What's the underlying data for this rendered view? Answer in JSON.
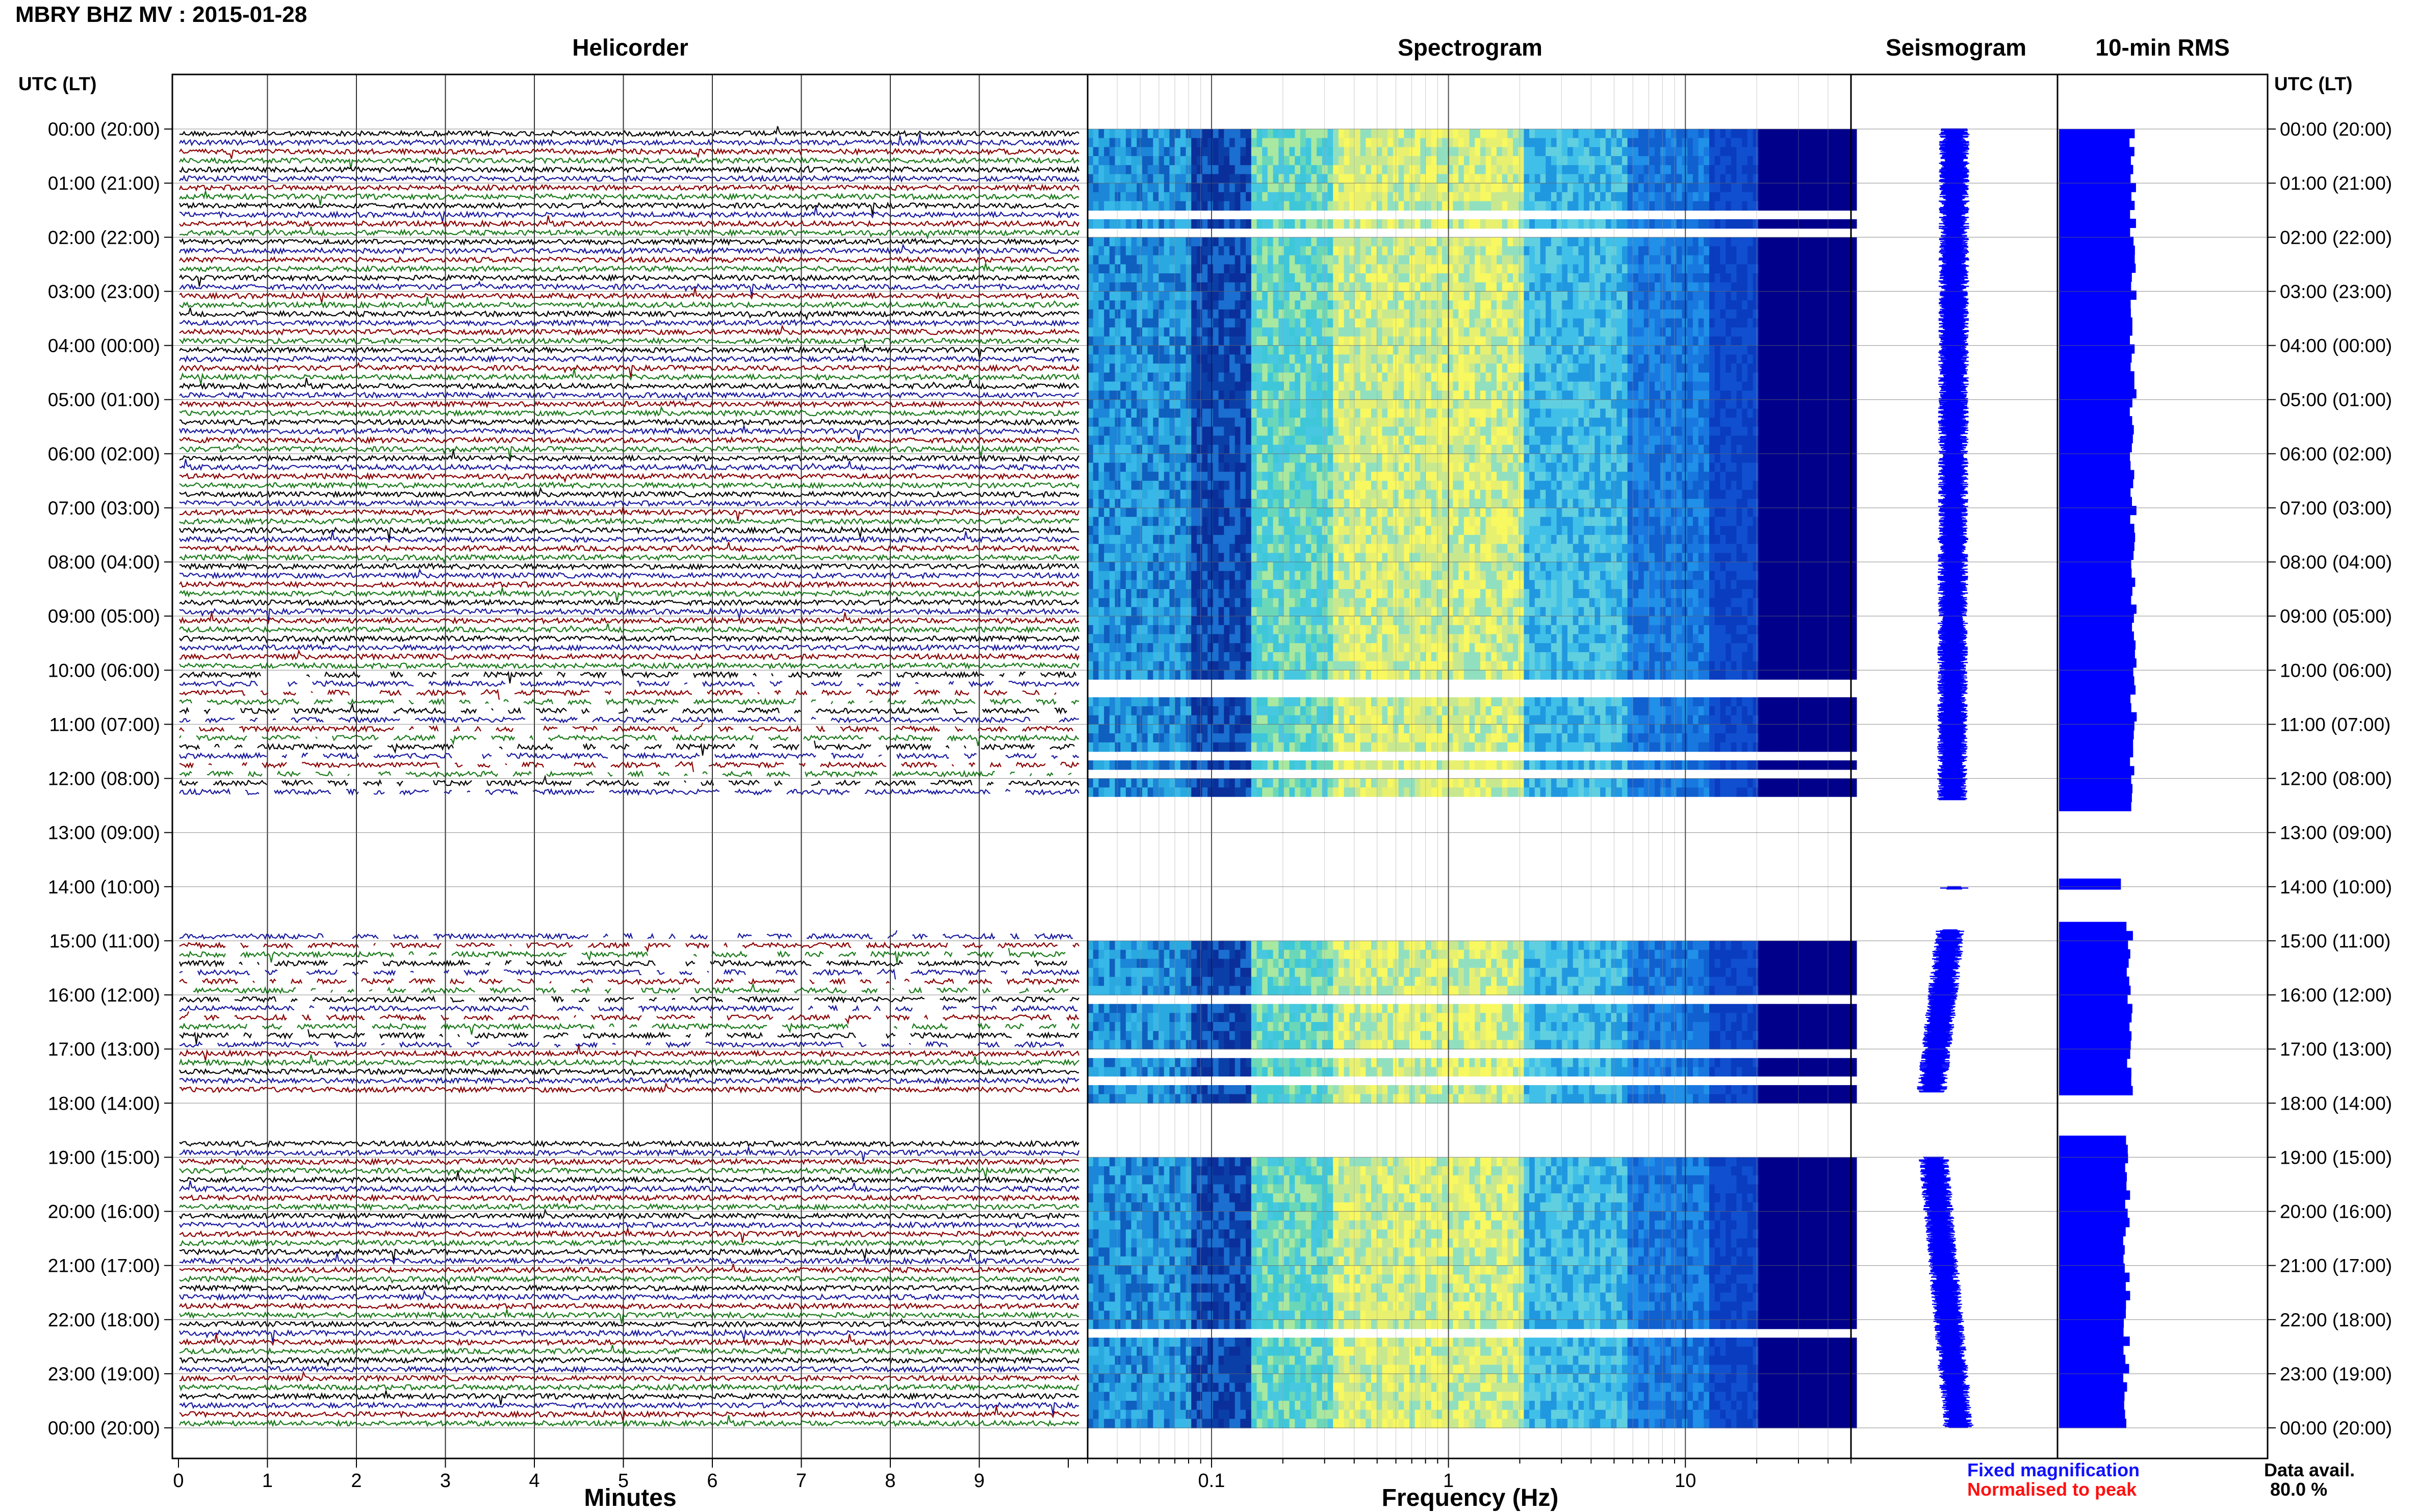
{
  "title": "MBRY BHZ MV : 2015-01-28",
  "panels": {
    "helicorder": "Helicorder",
    "spectrogram": "Spectrogram",
    "seismogram": "Seismogram",
    "rms": "10-min RMS"
  },
  "axis_left_title": "UTC (LT)",
  "axis_right_title": "UTC (LT)",
  "xlabels": {
    "helicorder": "Minutes",
    "spectrogram": "Frequency (Hz)"
  },
  "legend": {
    "fixed": "Fixed magnification",
    "normalised": "Normalised to peak"
  },
  "data_avail": {
    "label": "Data avail.",
    "value": "80.0 %"
  },
  "colors": {
    "trace_cycle": [
      "#000000",
      "#1a1aa0",
      "#8b0000",
      "#1a7a1a"
    ],
    "seismogram": "#0000ff",
    "rms": "#0000ff",
    "legend_fixed": "#1010ff",
    "legend_normalised": "#ff1010",
    "spectrogram_low": "#00008b",
    "spectrogram_mid": "#1e90ff",
    "spectrogram_high": "#ffff66"
  },
  "chart_data": [
    {
      "type": "line",
      "name": "helicorder",
      "title": "Helicorder",
      "xlabel": "Minutes",
      "ylabel": "UTC (LT)",
      "x_ticks": [
        "0",
        "1",
        "2",
        "3",
        "4",
        "5",
        "6",
        "7",
        "8",
        "9"
      ],
      "xlim": [
        0,
        10
      ],
      "y_ticks": [
        "00:00 (20:00)",
        "01:00 (21:00)",
        "02:00 (22:00)",
        "03:00 (23:00)",
        "04:00 (00:00)",
        "05:00 (01:00)",
        "06:00 (02:00)",
        "07:00 (03:00)",
        "08:00 (04:00)",
        "09:00 (05:00)",
        "10:00 (06:00)",
        "11:00 (07:00)",
        "12:00 (08:00)",
        "13:00 (09:00)",
        "14:00 (10:00)",
        "15:00 (11:00)",
        "16:00 (12:00)",
        "17:00 (13:00)",
        "18:00 (14:00)",
        "19:00 (15:00)",
        "20:00 (16:00)",
        "21:00 (17:00)",
        "22:00 (18:00)",
        "23:00 (19:00)",
        "00:00 (20:00)"
      ],
      "ylim_hours": [
        0,
        24
      ],
      "trace_minutes_per_line": 10,
      "data_segments_hours": [
        [
          0,
          12.3
        ],
        [
          14.8,
          17.8
        ],
        [
          18.6,
          24
        ]
      ],
      "grid": true
    },
    {
      "type": "heatmap",
      "name": "spectrogram",
      "title": "Spectrogram",
      "xlabel": "Frequency (Hz)",
      "x_scale": "log",
      "xlim": [
        0.03,
        50
      ],
      "x_ticks": [
        "0.1",
        "1",
        "10"
      ],
      "ylim_hours": [
        0,
        24
      ],
      "bright_band_hz": [
        0.15,
        2
      ],
      "data_segments_hours": [
        [
          0,
          0.25
        ],
        [
          0.3,
          1.5
        ],
        [
          1.65,
          1.85
        ],
        [
          1.95,
          7.1
        ],
        [
          7.2,
          9.1
        ],
        [
          9.2,
          10.1
        ],
        [
          10.5,
          10.8
        ],
        [
          10.85,
          11.15
        ],
        [
          11.25,
          11.5
        ],
        [
          11.6,
          11.85
        ],
        [
          11.95,
          12.15
        ],
        [
          12.25,
          12.4
        ],
        [
          15.0,
          15.6
        ],
        [
          15.7,
          16.0
        ],
        [
          16.2,
          17.0
        ],
        [
          17.15,
          17.55
        ],
        [
          17.6,
          17.95
        ],
        [
          19.0,
          22.2
        ],
        [
          22.35,
          23.97
        ]
      ],
      "grid": true
    },
    {
      "type": "line",
      "name": "seismogram",
      "title": "Seismogram",
      "ylim_hours": [
        0,
        24
      ],
      "segments": [
        {
          "y": [
            0,
            12.4
          ],
          "x": [
            0.5,
            0.49
          ]
        },
        {
          "y": [
            14.0,
            14.05
          ],
          "x": [
            0.5,
            0.5
          ]
        },
        {
          "y": [
            14.8,
            17.8
          ],
          "x": [
            0.48,
            0.39
          ]
        },
        {
          "y": [
            19.0,
            24.0
          ],
          "x": [
            0.4,
            0.52
          ]
        }
      ],
      "grid": true
    },
    {
      "type": "bar",
      "name": "rms",
      "title": "10-min RMS",
      "ylim_hours": [
        0,
        24
      ],
      "blocks": [
        {
          "y": [
            0,
            12.6
          ],
          "level": 0.82
        },
        {
          "y": [
            13.85,
            14.05
          ],
          "level": 0.72
        },
        {
          "y": [
            14.65,
            17.85
          ],
          "level": 0.78
        },
        {
          "y": [
            18.6,
            24.0
          ],
          "level": 0.75
        }
      ],
      "grid": true
    }
  ]
}
